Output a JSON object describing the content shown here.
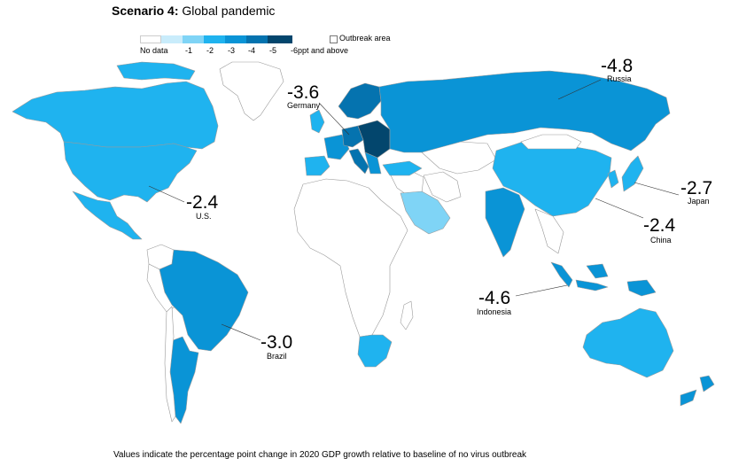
{
  "title": {
    "bold": "Scenario 4:",
    "rest": "Global pandemic"
  },
  "legend": {
    "items": [
      {
        "label": "No data",
        "color": "#ffffff"
      },
      {
        "label": "-1",
        "color": "#c9ecfb"
      },
      {
        "label": "-2",
        "color": "#7fd4f6"
      },
      {
        "label": "-3",
        "color": "#1fb3ef"
      },
      {
        "label": "-4",
        "color": "#0a94d6"
      },
      {
        "label": "-5",
        "color": "#0573af"
      },
      {
        "label": "-6ppt and above",
        "color": "#03466d"
      }
    ],
    "outbreak_label": "Outbreak area"
  },
  "countries": {
    "russia": {
      "value": "-4.8",
      "name": "Russia"
    },
    "germany": {
      "value": "-3.6",
      "name": "Germany"
    },
    "us": {
      "value": "-2.4",
      "name": "U.S."
    },
    "japan": {
      "value": "-2.7",
      "name": "Japan"
    },
    "china": {
      "value": "-2.4",
      "name": "China"
    },
    "indonesia": {
      "value": "-4.6",
      "name": "Indonesia"
    },
    "brazil": {
      "value": "-3.0",
      "name": "Brazil"
    }
  },
  "footnote": "Values indicate the percentage point change in 2020 GDP growth relative to baseline of no virus outbreak"
}
